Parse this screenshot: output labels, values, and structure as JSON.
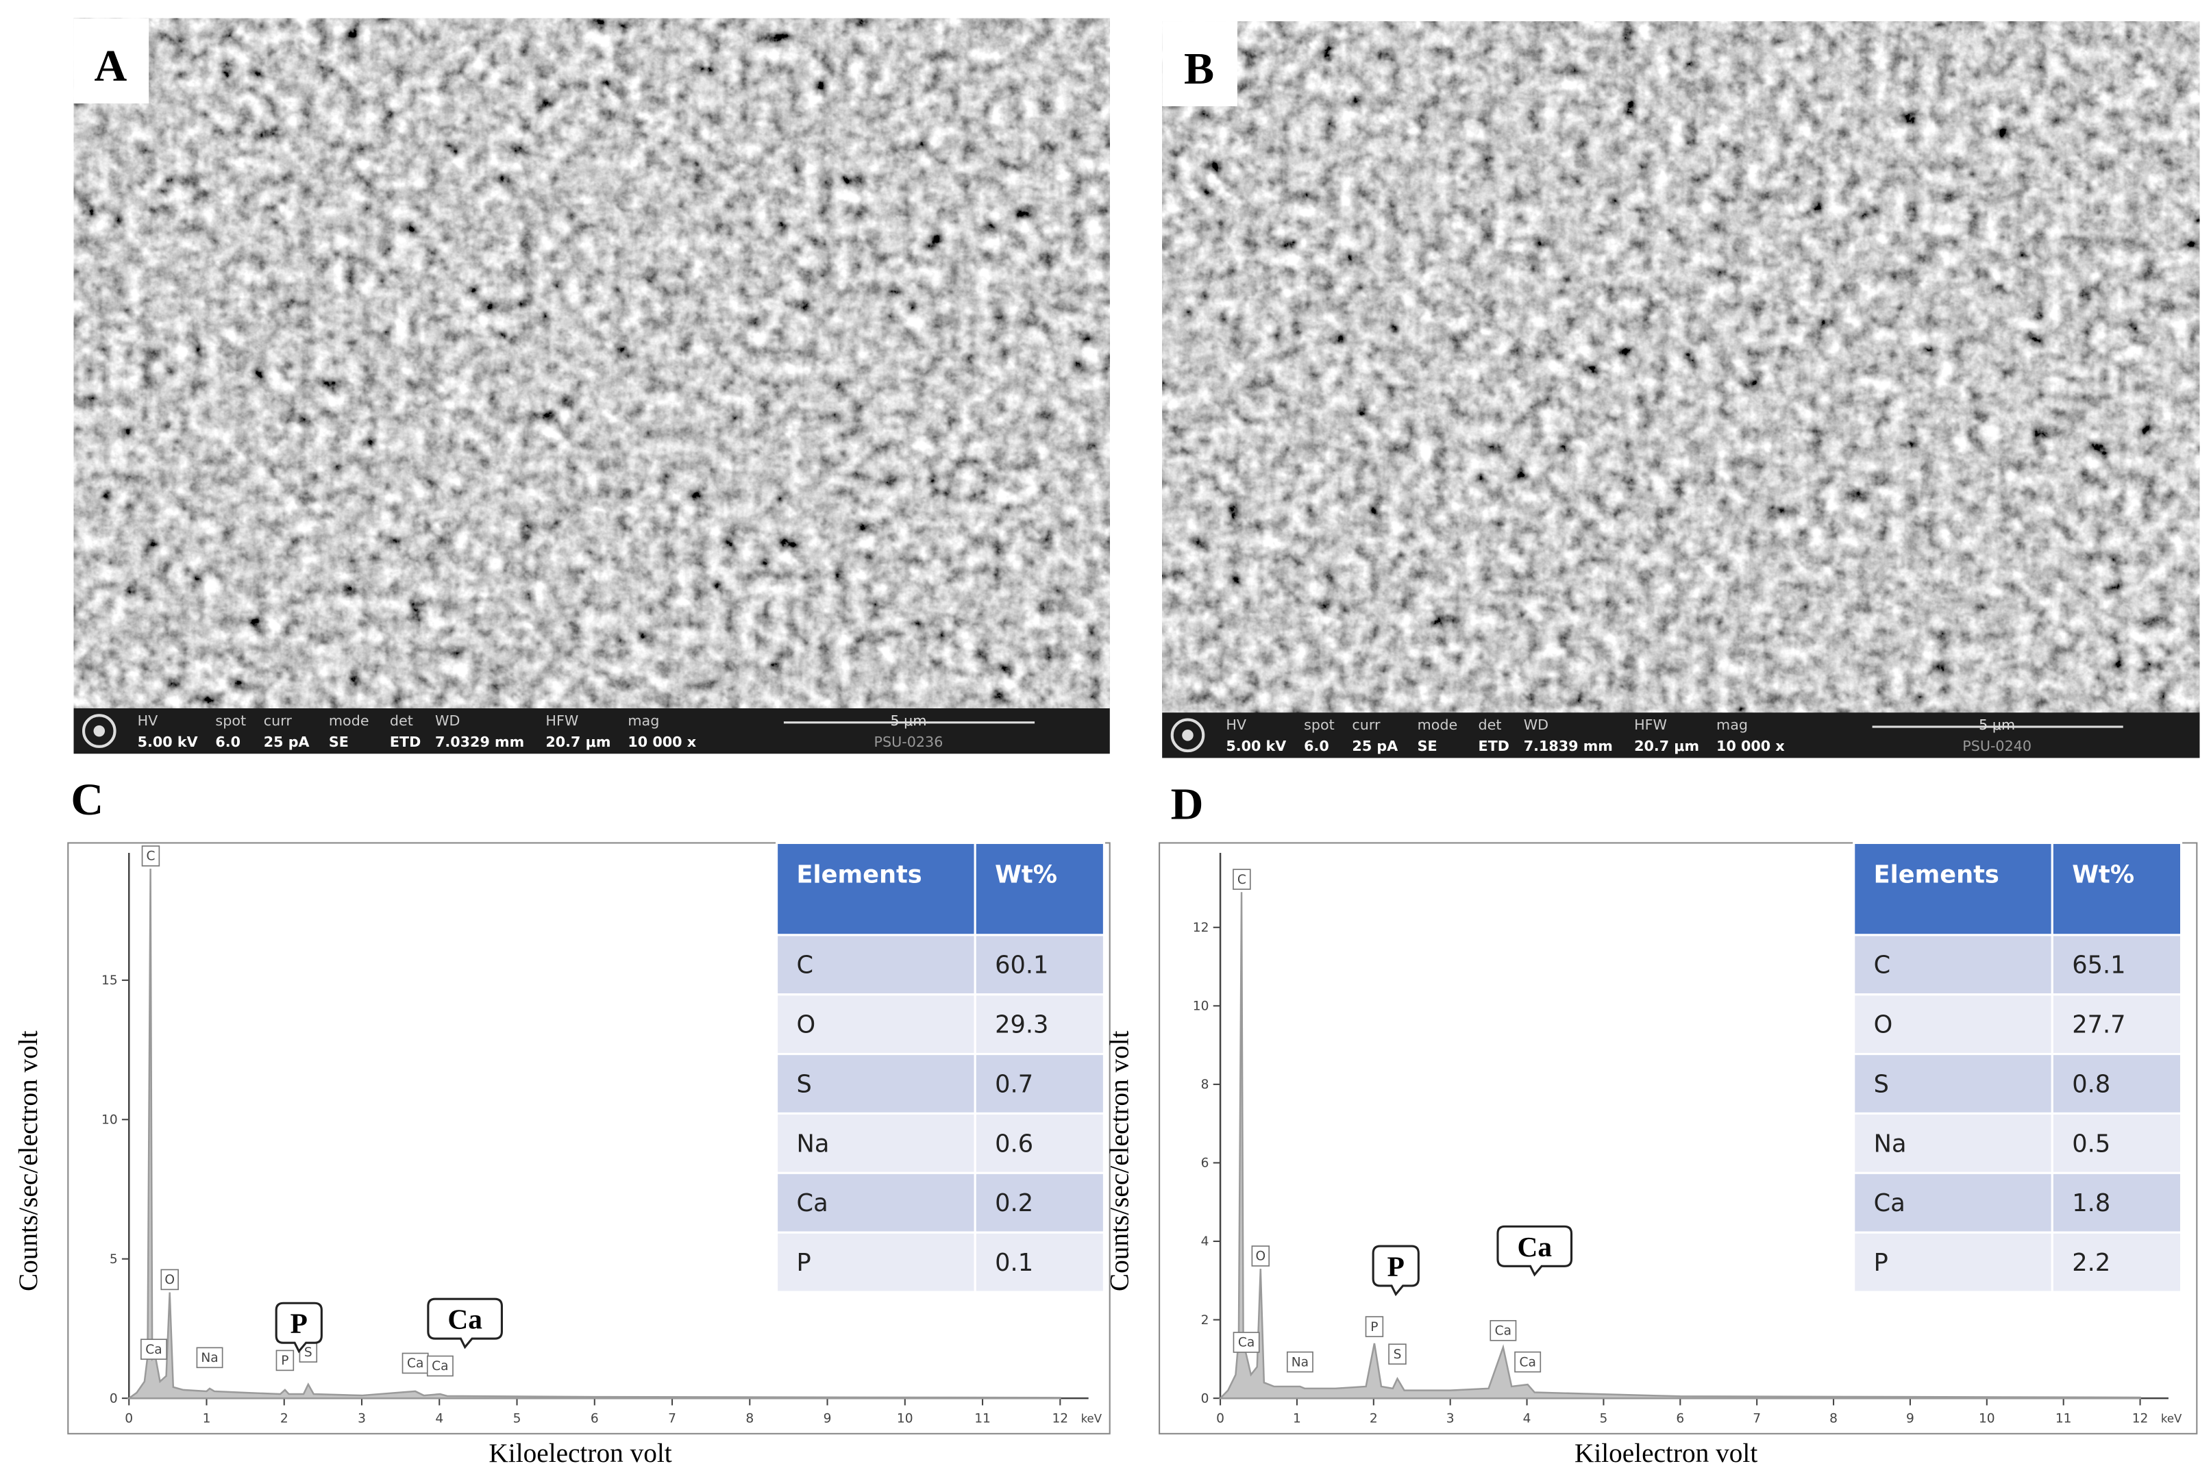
{
  "panels": [
    {
      "label": "A",
      "info": {
        "fields": [
          "HV",
          "spot",
          "curr",
          "mode",
          "det",
          "WD",
          "HFW",
          "mag"
        ],
        "values": [
          "5.00 kV",
          "6.0",
          "25 pA",
          "SE",
          "ETD",
          "7.0329 mm",
          "20.7 μm",
          "10 000 x"
        ],
        "scale": "5 μm",
        "id": "PSU-0236"
      }
    },
    {
      "label": "B",
      "info": {
        "fields": [
          "HV",
          "spot",
          "curr",
          "mode",
          "det",
          "WD",
          "HFW",
          "mag"
        ],
        "values": [
          "5.00 kV",
          "6.0",
          "25 pA",
          "SE",
          "ETD",
          "7.1839 mm",
          "20.7 μm",
          "10 000 x"
        ],
        "scale": "5 μm",
        "id": "PSU-0240"
      }
    }
  ],
  "chart_data": [
    {
      "type": "line",
      "label": "C",
      "xlabel": "Kiloelectron  volt",
      "ylabel": "Counts/sec/electron  volt",
      "unit": "keV",
      "x": [
        0,
        0.1,
        0.2,
        0.24,
        0.277,
        0.3,
        0.34,
        0.4,
        0.48,
        0.525,
        0.57,
        0.7,
        1.0,
        1.04,
        1.1,
        1.5,
        1.95,
        2.01,
        2.06,
        2.25,
        2.31,
        2.38,
        3.0,
        3.69,
        3.8,
        4.01,
        4.1,
        6,
        12
      ],
      "values": [
        0,
        0.2,
        0.6,
        1.5,
        19.0,
        1.4,
        1.5,
        0.6,
        0.8,
        3.8,
        0.4,
        0.3,
        0.25,
        0.35,
        0.25,
        0.2,
        0.15,
        0.3,
        0.15,
        0.15,
        0.5,
        0.15,
        0.1,
        0.25,
        0.1,
        0.15,
        0.08,
        0.05,
        0.02
      ],
      "color": "#9a9a9a",
      "xlim": [
        0,
        12
      ],
      "xticks": [
        0,
        1,
        2,
        3,
        4,
        5,
        6,
        7,
        8,
        9,
        10,
        11,
        12
      ],
      "ylim": [
        0,
        19.57
      ],
      "yticks": [
        0,
        5,
        10,
        15
      ],
      "peak_labels": [
        {
          "text": "C",
          "x": 0.28,
          "y": 19.0
        },
        {
          "text": "O",
          "x": 0.525,
          "y": 3.8
        },
        {
          "text": "Ca",
          "x": 0.32,
          "y": 1.3
        },
        {
          "text": "Na",
          "x": 1.04,
          "y": 1.0
        },
        {
          "text": "P",
          "x": 2.01,
          "y": 0.9
        },
        {
          "text": "S",
          "x": 2.31,
          "y": 1.2
        },
        {
          "text": "Ca",
          "x": 3.69,
          "y": 0.8
        },
        {
          "text": "Ca",
          "x": 4.01,
          "y": 0.7
        }
      ],
      "callouts": [
        {
          "text": "P",
          "x": 2.19,
          "y": 2.6
        },
        {
          "text": "Ca",
          "x": 4.33,
          "y": 2.75
        }
      ]
    },
    {
      "type": "line",
      "label": "D",
      "xlabel": "Kiloelectron  volt",
      "ylabel": "Counts/sec/electron  volt",
      "unit": "keV",
      "x": [
        0,
        0.1,
        0.2,
        0.24,
        0.277,
        0.3,
        0.34,
        0.4,
        0.48,
        0.525,
        0.57,
        0.7,
        1.04,
        1.1,
        1.5,
        1.9,
        2.01,
        2.1,
        2.25,
        2.31,
        2.4,
        3.0,
        3.5,
        3.69,
        3.8,
        4.01,
        4.1,
        6,
        12
      ],
      "values": [
        0,
        0.2,
        0.6,
        1.5,
        12.9,
        1.4,
        1.1,
        0.6,
        0.8,
        3.3,
        0.4,
        0.3,
        0.3,
        0.25,
        0.25,
        0.3,
        1.4,
        0.3,
        0.25,
        0.5,
        0.2,
        0.2,
        0.25,
        1.3,
        0.3,
        0.35,
        0.15,
        0.05,
        0.02
      ],
      "color": "#9a9a9a",
      "xlim": [
        0,
        12
      ],
      "xticks": [
        0,
        1,
        2,
        3,
        4,
        5,
        6,
        7,
        8,
        9,
        10,
        11,
        12
      ],
      "ylim": [
        0,
        13.9
      ],
      "yticks": [
        0,
        2,
        4,
        6,
        8,
        10,
        12
      ],
      "peak_labels": [
        {
          "text": "C",
          "x": 0.28,
          "y": 12.9
        },
        {
          "text": "O",
          "x": 0.525,
          "y": 3.3
        },
        {
          "text": "Ca",
          "x": 0.34,
          "y": 1.1
        },
        {
          "text": "Na",
          "x": 1.04,
          "y": 0.6
        },
        {
          "text": "P",
          "x": 2.01,
          "y": 1.5
        },
        {
          "text": "S",
          "x": 2.31,
          "y": 0.8
        },
        {
          "text": "Ca",
          "x": 3.69,
          "y": 1.4
        },
        {
          "text": "Ca",
          "x": 4.01,
          "y": 0.6
        }
      ],
      "callouts": [
        {
          "text": "P",
          "x": 2.29,
          "y": 3.3
        },
        {
          "text": "Ca",
          "x": 4.1,
          "y": 3.8
        }
      ]
    }
  ],
  "tables": [
    {
      "header": [
        "Elements",
        "Wt%"
      ],
      "rows": [
        [
          "C",
          "60.1"
        ],
        [
          "O",
          "29.3"
        ],
        [
          "S",
          "0.7"
        ],
        [
          "Na",
          "0.6"
        ],
        [
          "Ca",
          "0.2"
        ],
        [
          "P",
          "0.1"
        ]
      ]
    },
    {
      "header": [
        "Elements",
        "Wt%"
      ],
      "rows": [
        [
          "C",
          "65.1"
        ],
        [
          "O",
          "27.7"
        ],
        [
          "S",
          "0.8"
        ],
        [
          "Na",
          "0.5"
        ],
        [
          "Ca",
          "1.8"
        ],
        [
          "P",
          "2.2"
        ]
      ]
    }
  ]
}
